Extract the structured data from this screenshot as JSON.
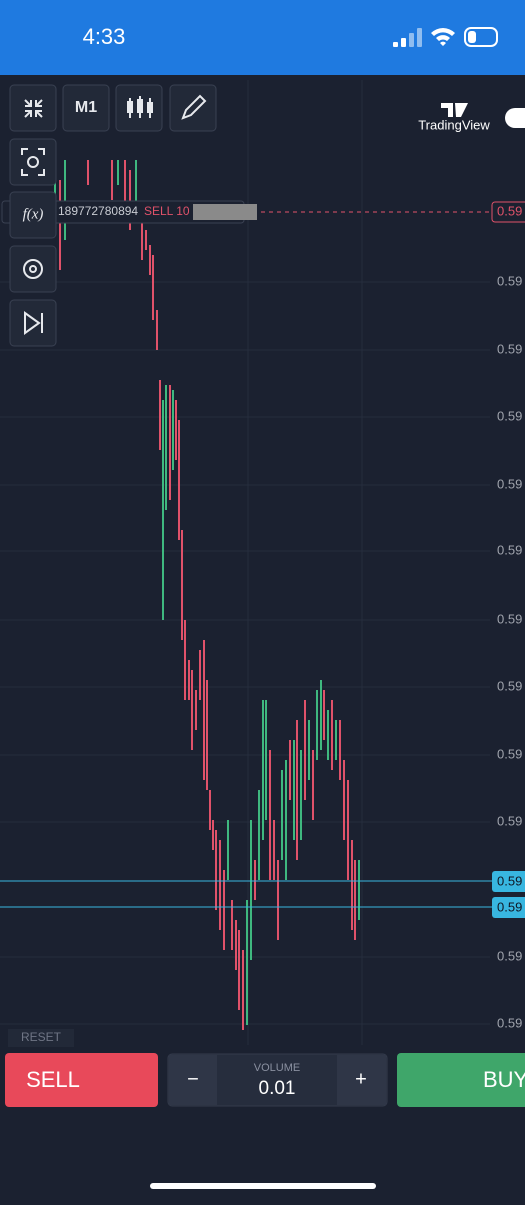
{
  "status_bar": {
    "time": "4:33"
  },
  "toolbar": {
    "timeframe": "M1",
    "indicator_icon": "f(x)",
    "brand": "TradingView"
  },
  "order_line": {
    "id": "189772780894",
    "label": "SELL 10",
    "price": "0.59"
  },
  "price_axis": {
    "labels": [
      "0.59",
      "0.59",
      "0.59",
      "0.59",
      "0.59",
      "0.59",
      "0.59",
      "0.59",
      "0.59",
      "0.59",
      "0.59"
    ]
  },
  "price_markers": [
    "0.59",
    "0.59"
  ],
  "footer": {
    "reset": "RESET",
    "sell": "SELL",
    "minus": "−",
    "volume_label": "VOLUME",
    "volume": "0.01",
    "plus": "+",
    "buy": "BUY"
  }
}
